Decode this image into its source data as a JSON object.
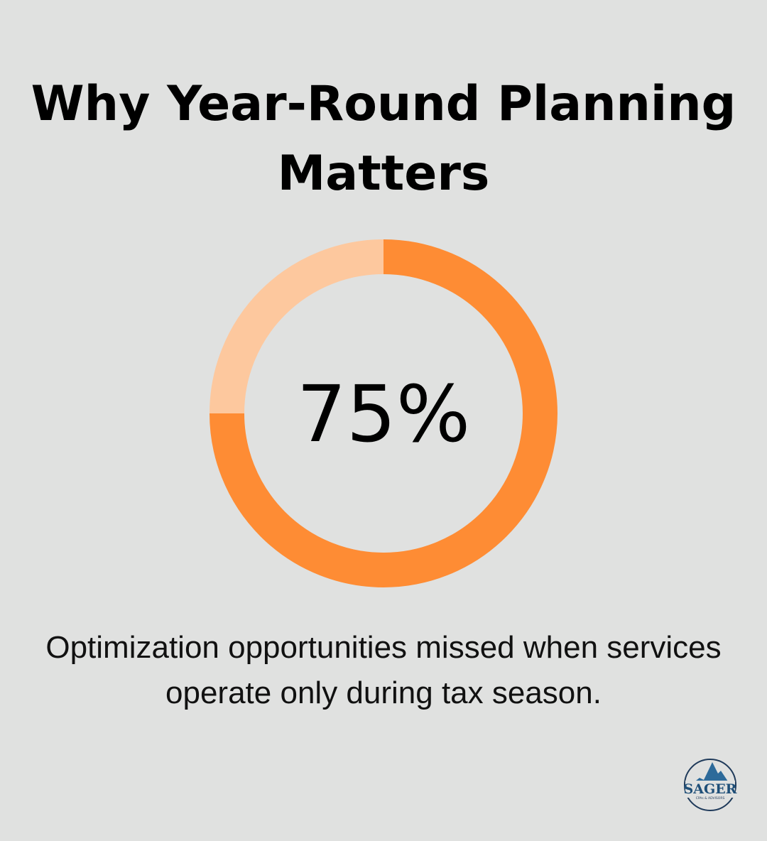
{
  "title": "Why Year-Round Planning Matters",
  "chart_data": {
    "type": "pie",
    "variant": "donut",
    "values": [
      75,
      25
    ],
    "center_label": "75%",
    "colors": [
      "#fe8c34",
      "#fdc89e"
    ]
  },
  "caption": "Optimization opportunities missed when services operate only during tax season.",
  "logo": {
    "name": "SAGER",
    "tagline": "CPAs & ADVISORS",
    "color": "#1f4f78"
  }
}
